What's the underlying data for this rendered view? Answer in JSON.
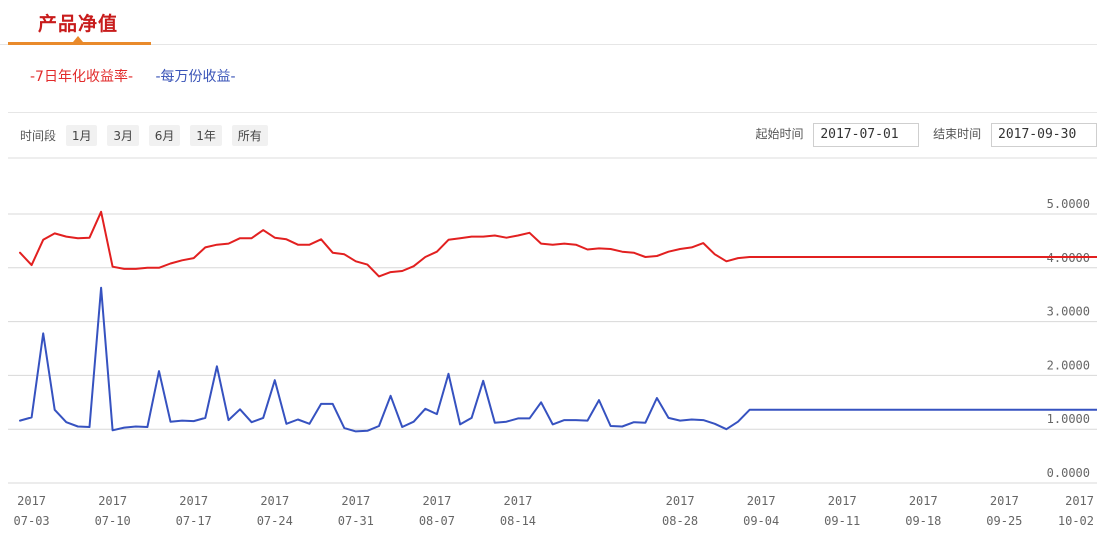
{
  "header": {
    "title": "产品净值"
  },
  "series_tabs": {
    "annual": "-7日年化收益率-",
    "per10k": "-每万份收益-"
  },
  "toolbar": {
    "range_label": "时间段",
    "ranges": [
      "1月",
      "3月",
      "6月",
      "1年",
      "所有"
    ],
    "start_label": "起始时间",
    "start_value": "2017-07-01",
    "end_label": "结束时间",
    "end_value": "2017-09-30"
  },
  "colors": {
    "annual": "#e22020",
    "per10k": "#3652c0",
    "accent": "#c81c1c",
    "tab_underline": "#e98a2b"
  },
  "chart_data": {
    "type": "line",
    "ylim": [
      0,
      5
    ],
    "y_ticks": [
      "0.0000",
      "1.0000",
      "2.0000",
      "3.0000",
      "4.0000",
      "5.0000"
    ],
    "x_ticks": [
      {
        "year": "2017",
        "date": "07-03"
      },
      {
        "year": "2017",
        "date": "07-10"
      },
      {
        "year": "2017",
        "date": "07-17"
      },
      {
        "year": "2017",
        "date": "07-24"
      },
      {
        "year": "2017",
        "date": "07-31"
      },
      {
        "year": "2017",
        "date": "08-07"
      },
      {
        "year": "2017",
        "date": "08-14"
      },
      {
        "year": "2017",
        "date": "08-28"
      },
      {
        "year": "2017",
        "date": "09-04"
      },
      {
        "year": "2017",
        "date": "09-11"
      },
      {
        "year": "2017",
        "date": "09-18"
      },
      {
        "year": "2017",
        "date": "09-25"
      },
      {
        "year": "2017",
        "date": "10-02"
      }
    ],
    "x_tick_days": [
      2,
      9,
      16,
      23,
      30,
      37,
      44,
      58,
      65,
      72,
      79,
      86,
      93
    ],
    "series": [
      {
        "name": "7日年化收益率",
        "x": [
          1,
          2,
          3,
          4,
          5,
          6,
          7,
          8,
          9,
          10,
          11,
          12,
          13,
          14,
          15,
          16,
          17,
          18,
          19,
          20,
          21,
          22,
          23,
          24,
          25,
          26,
          27,
          28,
          29,
          30,
          31,
          32,
          33,
          34,
          35,
          36,
          37,
          38,
          39,
          40,
          41,
          42,
          43,
          44,
          45,
          46,
          47,
          48,
          49,
          50,
          51,
          52,
          53,
          54,
          55,
          56,
          57,
          58,
          59,
          60,
          61,
          62,
          63,
          64,
          65,
          66,
          67,
          68,
          69,
          70,
          71,
          72,
          73,
          74,
          75,
          76,
          77,
          78,
          79,
          80,
          81,
          82,
          83,
          84,
          85,
          86,
          87,
          88,
          89,
          90,
          91,
          92,
          93,
          94
        ],
        "values": [
          4.28,
          4.05,
          4.52,
          4.64,
          4.58,
          4.55,
          4.56,
          5.04,
          4.02,
          3.98,
          3.98,
          4.0,
          4.0,
          4.08,
          4.14,
          4.18,
          4.38,
          4.43,
          4.45,
          4.55,
          4.55,
          4.7,
          4.56,
          4.53,
          4.43,
          4.43,
          4.53,
          4.28,
          4.25,
          4.12,
          4.06,
          3.84,
          3.92,
          3.94,
          4.03,
          4.2,
          4.3,
          4.52,
          4.55,
          4.58,
          4.58,
          4.6,
          4.56,
          4.6,
          4.65,
          4.45,
          4.43,
          4.45,
          4.43,
          4.34,
          4.36,
          4.35,
          4.3,
          4.28,
          4.2,
          4.22,
          4.3,
          4.35,
          4.38,
          4.46,
          4.25,
          4.12,
          4.18,
          4.2,
          4.2,
          4.2,
          4.2,
          4.2,
          4.2,
          4.2,
          4.2,
          4.2,
          4.2,
          4.2,
          4.2,
          4.2,
          4.2,
          4.2,
          4.2,
          4.2,
          4.2,
          4.2,
          4.2,
          4.2,
          4.2,
          4.2,
          4.2,
          4.2,
          4.2,
          4.2,
          4.2,
          4.2,
          4.2,
          4.2
        ]
      },
      {
        "name": "每万份收益",
        "x": [
          1,
          2,
          3,
          4,
          5,
          6,
          7,
          8,
          9,
          10,
          11,
          12,
          13,
          14,
          15,
          16,
          17,
          18,
          19,
          20,
          21,
          22,
          23,
          24,
          25,
          26,
          27,
          28,
          29,
          30,
          31,
          32,
          33,
          34,
          35,
          36,
          37,
          38,
          39,
          40,
          41,
          42,
          43,
          44,
          45,
          46,
          47,
          48,
          49,
          50,
          51,
          52,
          53,
          54,
          55,
          56,
          57,
          58,
          59,
          60,
          61,
          62,
          63,
          64,
          65,
          66,
          67,
          68,
          69,
          70,
          71,
          72,
          73,
          74,
          75,
          76,
          77,
          78,
          79,
          80,
          81,
          82,
          83,
          84,
          85,
          86,
          87,
          88,
          89,
          90,
          91,
          92,
          93,
          94
        ],
        "values": [
          1.16,
          1.22,
          2.78,
          1.36,
          1.13,
          1.05,
          1.04,
          3.63,
          0.98,
          1.03,
          1.05,
          1.04,
          2.08,
          1.14,
          1.16,
          1.15,
          1.21,
          2.17,
          1.17,
          1.37,
          1.13,
          1.21,
          1.91,
          1.1,
          1.18,
          1.1,
          1.47,
          1.47,
          1.02,
          0.96,
          0.97,
          1.06,
          1.62,
          1.04,
          1.14,
          1.38,
          1.28,
          2.03,
          1.09,
          1.21,
          1.9,
          1.12,
          1.14,
          1.2,
          1.2,
          1.5,
          1.09,
          1.17,
          1.17,
          1.16,
          1.54,
          1.06,
          1.05,
          1.13,
          1.12,
          1.58,
          1.21,
          1.16,
          1.18,
          1.17,
          1.1,
          1.0,
          1.14,
          1.36,
          1.36,
          1.36,
          1.36,
          1.36,
          1.36,
          1.36,
          1.36,
          1.36,
          1.36,
          1.36,
          1.36,
          1.36,
          1.36,
          1.36,
          1.36,
          1.36,
          1.36,
          1.36,
          1.36,
          1.36,
          1.36,
          1.36,
          1.36,
          1.36,
          1.36,
          1.36,
          1.36,
          1.36,
          1.36,
          1.36
        ]
      }
    ]
  }
}
